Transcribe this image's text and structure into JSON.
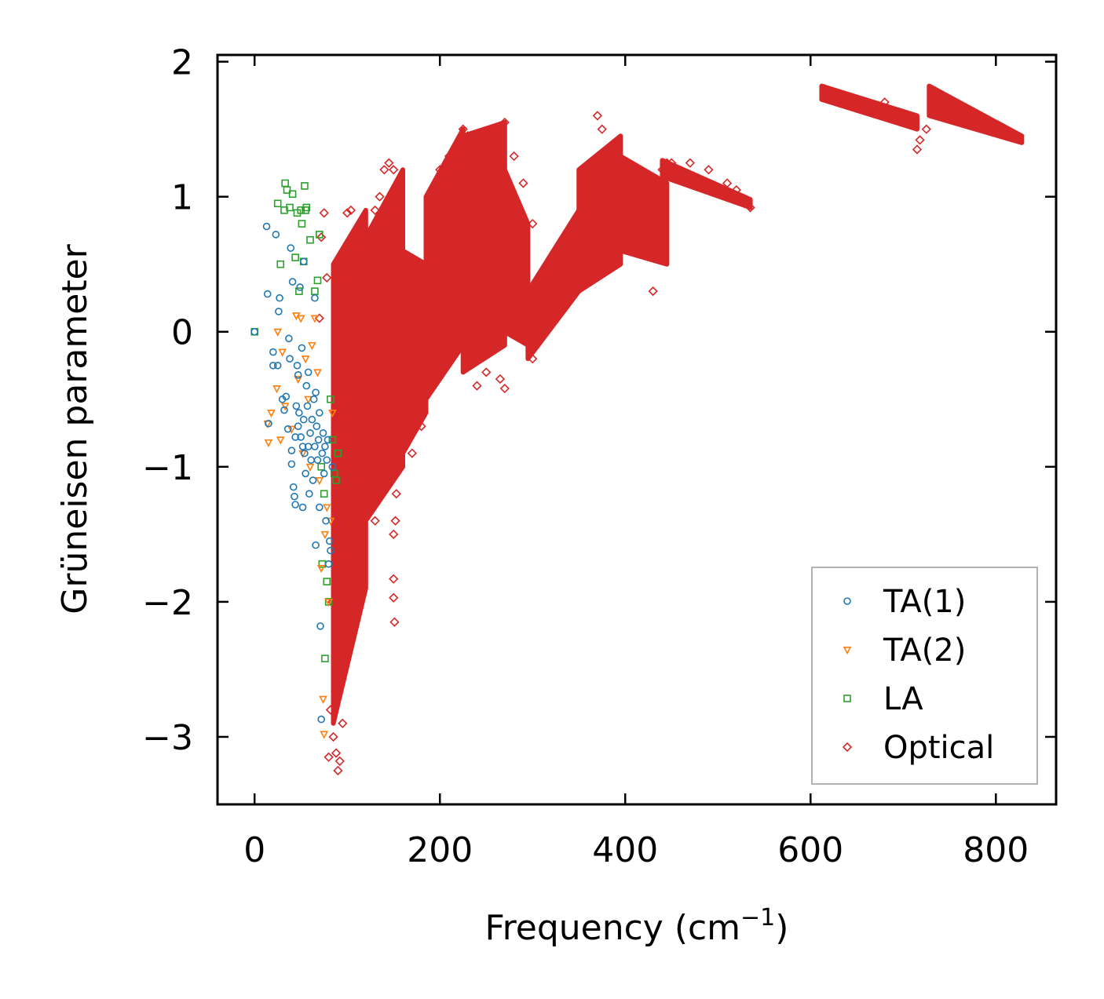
{
  "chart_data": {
    "type": "scatter",
    "title": "",
    "xlabel": "Frequency (cm",
    "xlabel_sup": "−1",
    "xlabel_end": ")",
    "ylabel": "Grüneisen parameter",
    "xlim": [
      -40,
      865
    ],
    "ylim": [
      -3.5,
      2.05
    ],
    "xticks": [
      0,
      200,
      400,
      600,
      800
    ],
    "xtick_labels": [
      "0",
      "200",
      "400",
      "600",
      "800"
    ],
    "yticks": [
      2,
      1,
      0,
      -1,
      -2,
      -3
    ],
    "ytick_labels": [
      "2",
      "1",
      "0",
      "−1",
      "−2",
      "−3"
    ],
    "legend_position": "lower-right",
    "series": [
      {
        "name": "TA(1)",
        "marker": "circle",
        "color": "#1f77b4",
        "points": [
          [
            0,
            0
          ],
          [
            13,
            0.78
          ],
          [
            14,
            0.28
          ],
          [
            15,
            -0.68
          ],
          [
            20,
            -0.15
          ],
          [
            20,
            -0.25
          ],
          [
            23,
            0.72
          ],
          [
            25,
            -0.25
          ],
          [
            26,
            0.15
          ],
          [
            27,
            0.25
          ],
          [
            30,
            -0.5
          ],
          [
            32,
            -0.58
          ],
          [
            34,
            -0.48
          ],
          [
            37,
            -0.05
          ],
          [
            38,
            -0.2
          ],
          [
            39,
            0.62
          ],
          [
            40,
            -0.88
          ],
          [
            40,
            -0.98
          ],
          [
            41,
            0.37
          ],
          [
            42,
            -1.15
          ],
          [
            43,
            -1.22
          ],
          [
            44,
            -1.28
          ],
          [
            45,
            -0.55
          ],
          [
            46,
            -0.25
          ],
          [
            47,
            -0.7
          ],
          [
            48,
            -0.6
          ],
          [
            49,
            0.33
          ],
          [
            50,
            -0.78
          ],
          [
            51,
            -0.12
          ],
          [
            52,
            -1.3
          ],
          [
            53,
            0.52
          ],
          [
            53,
            -0.65
          ],
          [
            54,
            -0.9
          ],
          [
            55,
            -1.05
          ],
          [
            56,
            -0.4
          ],
          [
            57,
            -0.55
          ],
          [
            58,
            -0.85
          ],
          [
            59,
            -1.2
          ],
          [
            60,
            -0.75
          ],
          [
            61,
            -0.95
          ],
          [
            62,
            -0.65
          ],
          [
            63,
            -1.1
          ],
          [
            64,
            -0.5
          ],
          [
            65,
            0.25
          ],
          [
            65,
            -0.85
          ],
          [
            66,
            -1.58
          ],
          [
            67,
            -0.7
          ],
          [
            68,
            -0.95
          ],
          [
            69,
            -0.8
          ],
          [
            70,
            -1.3
          ],
          [
            71,
            -2.18
          ],
          [
            72,
            -2.87
          ],
          [
            73,
            -0.9
          ],
          [
            74,
            -0.75
          ],
          [
            75,
            -1.05
          ],
          [
            76,
            -0.85
          ],
          [
            77,
            -1.4
          ],
          [
            78,
            -0.95
          ],
          [
            79,
            -0.8
          ],
          [
            80,
            -1.72
          ],
          [
            81,
            -1.55
          ],
          [
            82,
            -1.62
          ],
          [
            84,
            -1.0
          ],
          [
            70,
            -0.6
          ],
          [
            66,
            -0.45
          ],
          [
            58,
            -0.3
          ],
          [
            47,
            -0.32
          ],
          [
            36,
            -0.72
          ],
          [
            44,
            -0.78
          ],
          [
            52,
            -0.85
          ]
        ]
      },
      {
        "name": "TA(2)",
        "marker": "triangle-down",
        "color": "#ff7f0e",
        "points": [
          [
            14,
            -0.68
          ],
          [
            15,
            -0.82
          ],
          [
            18,
            -0.6
          ],
          [
            24,
            -0.42
          ],
          [
            25,
            0.0
          ],
          [
            28,
            -0.8
          ],
          [
            30,
            -0.15
          ],
          [
            33,
            -0.55
          ],
          [
            40,
            -0.72
          ],
          [
            45,
            0.12
          ],
          [
            47,
            -0.35
          ],
          [
            50,
            0.1
          ],
          [
            52,
            -0.9
          ],
          [
            55,
            -0.2
          ],
          [
            58,
            -0.5
          ],
          [
            60,
            -1.0
          ],
          [
            62,
            -0.1
          ],
          [
            65,
            0.1
          ],
          [
            68,
            -0.3
          ],
          [
            70,
            -1.1
          ],
          [
            72,
            -1.75
          ],
          [
            74,
            -2.72
          ],
          [
            75,
            -2.98
          ],
          [
            76,
            -1.5
          ],
          [
            78,
            -1.3
          ],
          [
            80,
            -2.0
          ],
          [
            82,
            -1.4
          ],
          [
            84,
            -0.6
          ]
        ]
      },
      {
        "name": "LA",
        "marker": "square",
        "color": "#2ca02c",
        "points": [
          [
            0,
            0
          ],
          [
            25,
            0.95
          ],
          [
            28,
            0.5
          ],
          [
            32,
            0.9
          ],
          [
            33,
            1.1
          ],
          [
            35,
            1.05
          ],
          [
            38,
            0.92
          ],
          [
            41,
            1.02
          ],
          [
            44,
            0.55
          ],
          [
            46,
            0.88
          ],
          [
            48,
            0.3
          ],
          [
            50,
            0.9
          ],
          [
            51,
            0.8
          ],
          [
            53,
            0.52
          ],
          [
            54,
            1.08
          ],
          [
            55,
            0.9
          ],
          [
            56,
            0.92
          ],
          [
            60,
            0.68
          ],
          [
            65,
            0.3
          ],
          [
            68,
            0.38
          ],
          [
            70,
            0.72
          ],
          [
            72,
            -1.0
          ],
          [
            73,
            -1.72
          ],
          [
            75,
            -1.2
          ],
          [
            76,
            -2.42
          ],
          [
            78,
            -1.85
          ],
          [
            80,
            -2.0
          ],
          [
            82,
            -0.5
          ],
          [
            84,
            -0.8
          ],
          [
            86,
            -1.05
          ],
          [
            88,
            -1.1
          ],
          [
            90,
            -0.9
          ]
        ]
      },
      {
        "name": "Optical",
        "marker": "diamond",
        "color": "#d62728",
        "points": [
          [
            70,
            0.1
          ],
          [
            72,
            0.7
          ],
          [
            75,
            0.88
          ],
          [
            78,
            0.4
          ],
          [
            80,
            -3.15
          ],
          [
            82,
            -2.8
          ],
          [
            85,
            -3.0
          ],
          [
            88,
            -3.12
          ],
          [
            90,
            -3.25
          ],
          [
            92,
            -3.18
          ],
          [
            95,
            -2.9
          ],
          [
            92,
            -2.6
          ],
          [
            88,
            -2.3
          ],
          [
            84,
            -2.0
          ],
          [
            96,
            -2.2
          ],
          [
            100,
            -1.8
          ],
          [
            98,
            -1.5
          ],
          [
            100,
            0.88
          ],
          [
            104,
            0.9
          ],
          [
            108,
            0.6
          ],
          [
            112,
            0.3
          ],
          [
            118,
            -0.1
          ],
          [
            120,
            0.2
          ],
          [
            125,
            0.6
          ],
          [
            130,
            0.9
          ],
          [
            135,
            1.0
          ],
          [
            140,
            1.2
          ],
          [
            145,
            1.25
          ],
          [
            150,
            1.2
          ],
          [
            155,
            1.1
          ],
          [
            150,
            -1.83
          ],
          [
            150,
            -1.97
          ],
          [
            151,
            -2.15
          ],
          [
            150,
            -1.5
          ],
          [
            152,
            -1.4
          ],
          [
            153,
            -1.2
          ],
          [
            120,
            -1.3
          ],
          [
            130,
            -1.4
          ],
          [
            140,
            -1.0
          ],
          [
            160,
            -0.8
          ],
          [
            170,
            -0.9
          ],
          [
            180,
            -0.7
          ],
          [
            190,
            1.0
          ],
          [
            200,
            1.2
          ],
          [
            210,
            1.3
          ],
          [
            220,
            1.4
          ],
          [
            225,
            1.5
          ],
          [
            230,
            1.45
          ],
          [
            240,
            1.3
          ],
          [
            250,
            1.4
          ],
          [
            260,
            1.5
          ],
          [
            270,
            1.55
          ],
          [
            280,
            1.3
          ],
          [
            290,
            1.1
          ],
          [
            300,
            0.8
          ],
          [
            240,
            -0.4
          ],
          [
            250,
            -0.3
          ],
          [
            265,
            -0.35
          ],
          [
            270,
            -0.42
          ],
          [
            295,
            0.0
          ],
          [
            300,
            -0.2
          ],
          [
            310,
            0.3
          ],
          [
            330,
            0.4
          ],
          [
            350,
            0.8
          ],
          [
            360,
            1.1
          ],
          [
            370,
            1.6
          ],
          [
            375,
            1.5
          ],
          [
            385,
            1.3
          ],
          [
            395,
            1.2
          ],
          [
            400,
            1.0
          ],
          [
            410,
            0.9
          ],
          [
            420,
            0.6
          ],
          [
            430,
            0.3
          ],
          [
            440,
            1.2
          ],
          [
            445,
            1.25
          ],
          [
            450,
            1.25
          ],
          [
            470,
            1.25
          ],
          [
            490,
            1.2
          ],
          [
            510,
            1.1
          ],
          [
            520,
            1.05
          ],
          [
            530,
            0.95
          ],
          [
            535,
            0.92
          ],
          [
            615,
            1.8
          ],
          [
            630,
            1.75
          ],
          [
            650,
            1.68
          ],
          [
            670,
            1.68
          ],
          [
            680,
            1.7
          ],
          [
            700,
            1.6
          ],
          [
            710,
            1.55
          ],
          [
            715,
            1.35
          ],
          [
            718,
            1.42
          ],
          [
            725,
            1.5
          ],
          [
            735,
            1.78
          ],
          [
            750,
            1.65
          ],
          [
            770,
            1.58
          ],
          [
            790,
            1.52
          ],
          [
            810,
            1.48
          ],
          [
            825,
            1.43
          ]
        ],
        "bands": [
          {
            "x": [
              85,
              120
            ],
            "y_low": [
              -2.9,
              -1.9
            ],
            "y_high": [
              0.5,
              0.9
            ]
          },
          {
            "x": [
              120,
              160
            ],
            "y_low": [
              -1.4,
              -1.0
            ],
            "y_high": [
              0.7,
              1.2
            ]
          },
          {
            "x": [
              160,
              185
            ],
            "y_low": [
              -0.9,
              -0.6
            ],
            "y_high": [
              0.6,
              0.5
            ]
          },
          {
            "x": [
              185,
              225
            ],
            "y_low": [
              -0.5,
              -0.1
            ],
            "y_high": [
              1.0,
              1.5
            ]
          },
          {
            "x": [
              225,
              270
            ],
            "y_low": [
              -0.3,
              -0.1
            ],
            "y_high": [
              1.45,
              1.55
            ]
          },
          {
            "x": [
              270,
              295
            ],
            "y_low": [
              0.0,
              -0.1
            ],
            "y_high": [
              1.2,
              0.8
            ]
          },
          {
            "x": [
              295,
              350
            ],
            "y_low": [
              -0.2,
              0.3
            ],
            "y_high": [
              0.3,
              0.9
            ]
          },
          {
            "x": [
              350,
              395
            ],
            "y_low": [
              0.3,
              0.5
            ],
            "y_high": [
              1.2,
              1.45
            ]
          },
          {
            "x": [
              395,
              445
            ],
            "y_low": [
              0.6,
              0.5
            ],
            "y_high": [
              1.3,
              1.1
            ]
          },
          {
            "x": [
              440,
              535
            ],
            "y_low": [
              1.15,
              0.92
            ],
            "y_high": [
              1.27,
              0.98
            ]
          },
          {
            "x": [
              612,
              715
            ],
            "y_low": [
              1.72,
              1.5
            ],
            "y_high": [
              1.82,
              1.6
            ]
          },
          {
            "x": [
              728,
              828
            ],
            "y_low": [
              1.6,
              1.4
            ],
            "y_high": [
              1.82,
              1.45
            ]
          }
        ]
      }
    ]
  }
}
